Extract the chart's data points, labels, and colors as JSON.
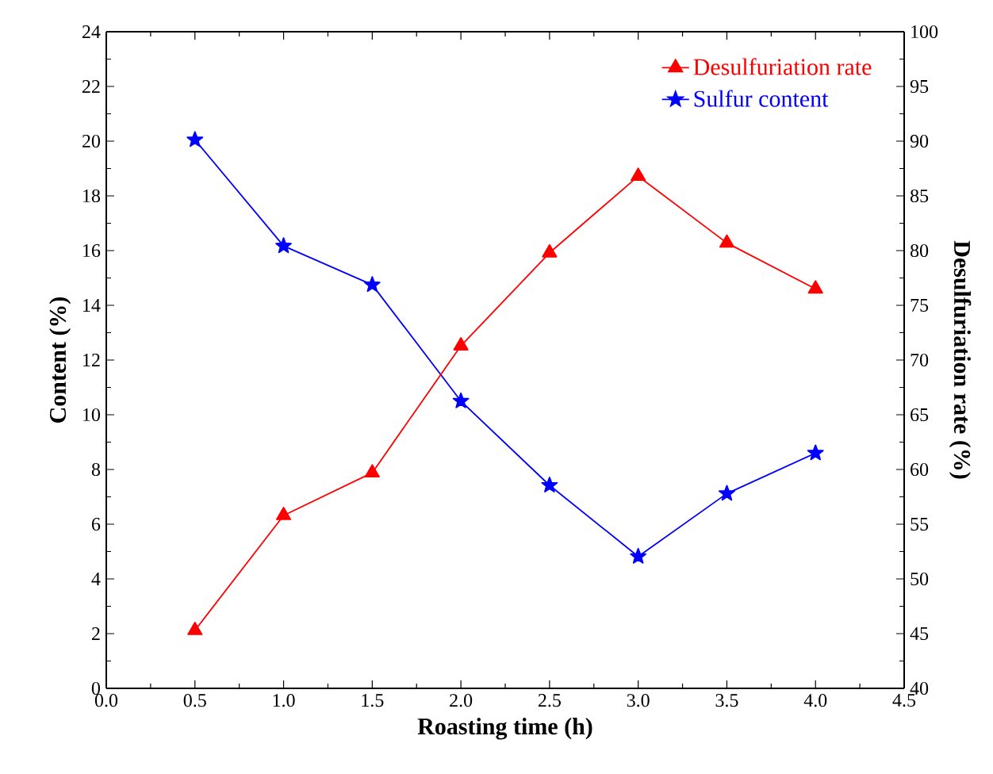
{
  "chart_data": {
    "type": "line",
    "xlabel": "Roasting time (h)",
    "ylabel": "Content (%)",
    "y2label": "Desulfuriation rate (%)",
    "x": [
      0.5,
      1.0,
      1.5,
      2.0,
      2.5,
      3.0,
      3.5,
      4.0
    ],
    "series": [
      {
        "name": "Desulfuriation rate",
        "color": "#ff0000",
        "axis": "y2",
        "marker": "triangle",
        "values": [
          45.3,
          55.8,
          59.7,
          71.3,
          79.8,
          86.8,
          80.7,
          76.5
        ]
      },
      {
        "name": "Sulfur content",
        "color": "#0000ff",
        "marker": "star",
        "values": [
          20.05,
          16.17,
          14.75,
          10.5,
          7.42,
          4.82,
          7.12,
          8.6
        ]
      }
    ],
    "xlim": [
      0,
      4.5
    ],
    "xticks": [
      {
        "value": 0,
        "label": "0.0"
      },
      {
        "value": 0.5,
        "label": "0.5"
      },
      {
        "value": 1,
        "label": "1.0"
      },
      {
        "value": 1.5,
        "label": "1.5"
      },
      {
        "value": 2,
        "label": "2.0"
      },
      {
        "value": 2.5,
        "label": "2.5"
      },
      {
        "value": 3,
        "label": "3.0"
      },
      {
        "value": 3.5,
        "label": "3.5"
      },
      {
        "value": 4,
        "label": "4.0"
      },
      {
        "value": 4.5,
        "label": "4.5"
      }
    ],
    "ylim": [
      0,
      24
    ],
    "yticks": [
      0,
      2,
      4,
      6,
      8,
      10,
      12,
      14,
      16,
      18,
      20,
      22,
      24
    ],
    "y2lim": [
      40,
      100
    ],
    "y2ticks": [
      40,
      45,
      50,
      55,
      60,
      65,
      70,
      75,
      80,
      85,
      90,
      95,
      100
    ],
    "grid": false,
    "legend": "top right",
    "line_style": "solid"
  }
}
